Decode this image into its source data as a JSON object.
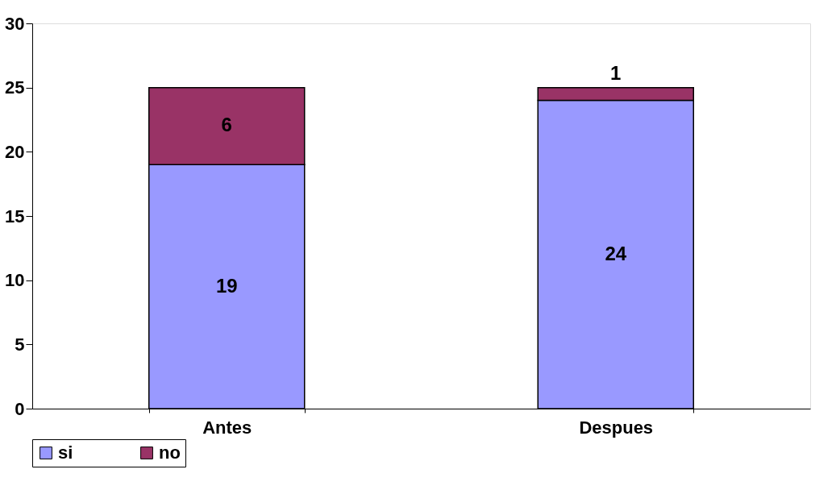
{
  "chart_data": {
    "type": "bar",
    "stacked": true,
    "categories": [
      "Antes",
      "Despues"
    ],
    "series": [
      {
        "name": "si",
        "color": "#9999ff",
        "values": [
          19,
          24
        ]
      },
      {
        "name": "no",
        "color": "#993366",
        "values": [
          6,
          1
        ]
      }
    ],
    "ylim": [
      0,
      30
    ],
    "yticks": [
      0,
      5,
      10,
      15,
      20,
      25,
      30
    ],
    "grid": false,
    "legend": "bottom",
    "data_labels": true
  }
}
